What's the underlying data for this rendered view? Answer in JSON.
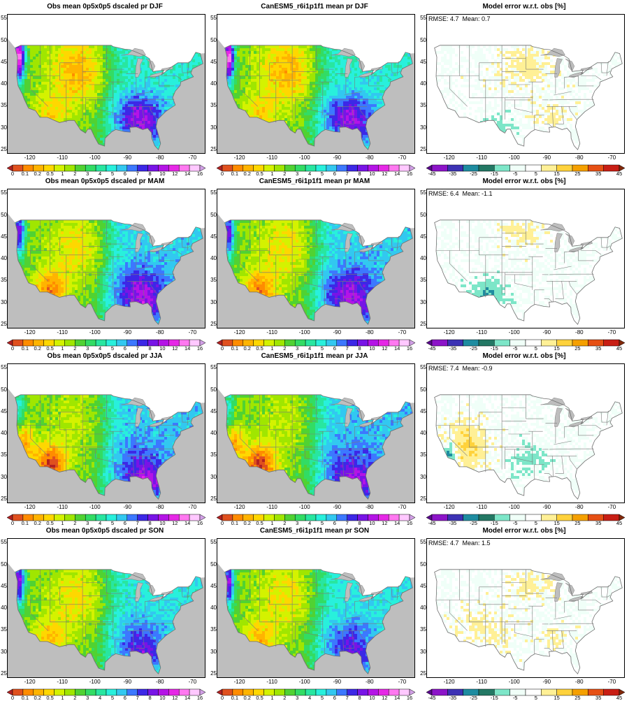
{
  "columns": [
    {
      "type": "obs",
      "title_prefix": "Obs mean 0p5x0p5 dscaled pr"
    },
    {
      "type": "model",
      "title_prefix": "CanESM5_r6i1p1f1 mean pr"
    },
    {
      "type": "error",
      "title": "Model error w.r.t. obs [%]"
    }
  ],
  "rows": [
    {
      "season": "DJF",
      "rmse_label": "RMSE: 4.7",
      "mean_label": "Mean: 0.7",
      "error_mean": 0.7,
      "rmse": 4.7
    },
    {
      "season": "MAM",
      "rmse_label": "RMSE: 6.4",
      "mean_label": "Mean: -1.1",
      "error_mean": -1.1,
      "rmse": 6.4
    },
    {
      "season": "JJA",
      "rmse_label": "RMSE: 7.4",
      "mean_label": "Mean: -0.9",
      "error_mean": -0.9,
      "rmse": 7.4
    },
    {
      "season": "SON",
      "rmse_label": "RMSE: 4.7",
      "mean_label": "Mean: 1.5",
      "error_mean": 1.5,
      "rmse": 4.7
    }
  ],
  "map": {
    "lon_range": [
      -127,
      -66
    ],
    "lat_range": [
      24,
      56
    ],
    "lon_ticks": [
      "-120",
      "-110",
      "-100",
      "-90",
      "-80",
      "-70"
    ],
    "lon_tick_values": [
      -120,
      -110,
      -100,
      -90,
      -80,
      -70
    ],
    "lat_ticks": [
      "25",
      "30",
      "35",
      "40",
      "45",
      "50",
      "55"
    ],
    "lat_tick_values": [
      25,
      30,
      35,
      40,
      45,
      50,
      55
    ],
    "land_mask_color": "#bebebe"
  },
  "precip_colorbar": {
    "labels": [
      "0",
      "0.1",
      "0.2",
      "0.5",
      "1",
      "2",
      "3",
      "4",
      "5",
      "6",
      "7",
      "8",
      "10",
      "12",
      "14",
      "16"
    ],
    "colors": [
      "#b22222",
      "#e0501e",
      "#ff8c00",
      "#ffb400",
      "#ffd700",
      "#d4f200",
      "#a0e600",
      "#50d232",
      "#32dc64",
      "#28e6a0",
      "#28f0dc",
      "#32c8f0",
      "#3c78ff",
      "#3c28e6",
      "#7814e6",
      "#b414e6",
      "#e628e6",
      "#ff78f0",
      "#ffc8ff",
      "#d2a0e6"
    ]
  },
  "error_colorbar": {
    "labels": [
      "-45",
      "-35",
      "-25",
      "-15",
      "-5",
      "5",
      "15",
      "25",
      "35",
      "45"
    ],
    "colors": [
      "#5a0a8c",
      "#8c14c8",
      "#3c32b4",
      "#1e8ca0",
      "#237864",
      "#7de6c8",
      "#f0fff8",
      "#ffffff",
      "#fff096",
      "#ffd23c",
      "#f5a000",
      "#e65014",
      "#c81e14",
      "#82280a"
    ]
  }
}
